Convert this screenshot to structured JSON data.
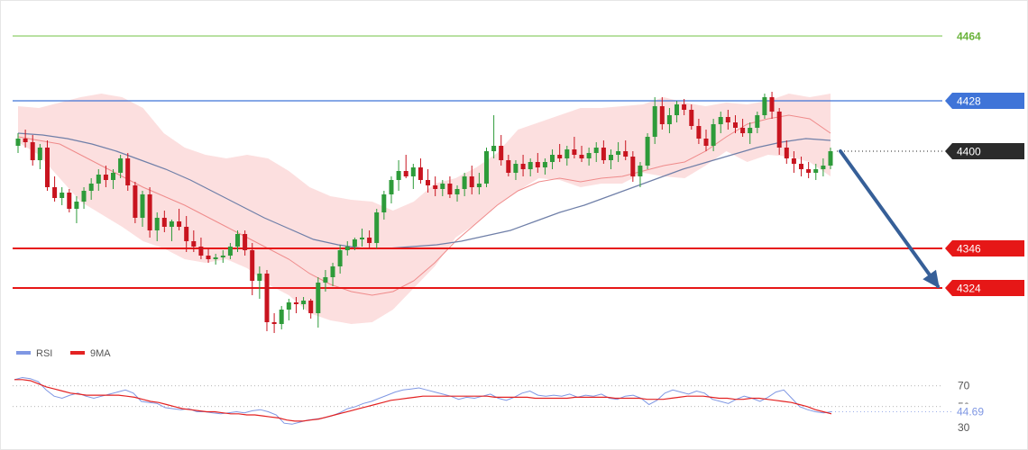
{
  "colors": {
    "background": "#ffffff",
    "up_candle": "#2e9b3a",
    "down_candle": "#c8141f",
    "bollinger_fill": "#fbd9d9",
    "bollinger_middle": "#ef8b8b",
    "moving_average": "#6f7fa8",
    "resistance_line": "#3f74d8",
    "support_line": "#e61717",
    "top_line": "#8fcf6a",
    "top_label": "#6ab33b",
    "current_price_tag": "#2b2b2b",
    "arrow": "#365f98",
    "rsi_line": "#7f97e3",
    "ma9_line": "#e32222",
    "axis_text": "#555555"
  },
  "price_chart": {
    "ylim": [
      4298,
      4478
    ],
    "candles_ohlc": [
      [
        4403,
        4410,
        4399,
        4407
      ],
      [
        4407,
        4412,
        4402,
        4405
      ],
      [
        4405,
        4409,
        4392,
        4395
      ],
      [
        4395,
        4404,
        4390,
        4402
      ],
      [
        4402,
        4406,
        4378,
        4380
      ],
      [
        4380,
        4386,
        4372,
        4374
      ],
      [
        4374,
        4380,
        4370,
        4377
      ],
      [
        4377,
        4379,
        4366,
        4368
      ],
      [
        4368,
        4375,
        4360,
        4372
      ],
      [
        4372,
        4380,
        4368,
        4378
      ],
      [
        4378,
        4385,
        4373,
        4382
      ],
      [
        4382,
        4390,
        4378,
        4387
      ],
      [
        4387,
        4392,
        4380,
        4384
      ],
      [
        4384,
        4390,
        4379,
        4388
      ],
      [
        4388,
        4398,
        4385,
        4396
      ],
      [
        4396,
        4399,
        4378,
        4381
      ],
      [
        4381,
        4383,
        4360,
        4363
      ],
      [
        4363,
        4378,
        4358,
        4376
      ],
      [
        4376,
        4380,
        4352,
        4356
      ],
      [
        4356,
        4366,
        4350,
        4363
      ],
      [
        4363,
        4367,
        4355,
        4358
      ],
      [
        4358,
        4362,
        4350,
        4361
      ],
      [
        4361,
        4368,
        4356,
        4358
      ],
      [
        4358,
        4364,
        4344,
        4350
      ],
      [
        4350,
        4356,
        4344,
        4347
      ],
      [
        4347,
        4352,
        4340,
        4342
      ],
      [
        4342,
        4346,
        4338,
        4340
      ],
      [
        4340,
        4343,
        4337,
        4341
      ],
      [
        4341,
        4345,
        4338,
        4342
      ],
      [
        4342,
        4349,
        4340,
        4347
      ],
      [
        4347,
        4356,
        4344,
        4354
      ],
      [
        4354,
        4356,
        4342,
        4345
      ],
      [
        4345,
        4349,
        4320,
        4328
      ],
      [
        4328,
        4336,
        4318,
        4332
      ],
      [
        4332,
        4334,
        4300,
        4305
      ],
      [
        4305,
        4310,
        4299,
        4304
      ],
      [
        4304,
        4314,
        4301,
        4312
      ],
      [
        4312,
        4318,
        4306,
        4316
      ],
      [
        4316,
        4319,
        4310,
        4315
      ],
      [
        4315,
        4319,
        4312,
        4317
      ],
      [
        4317,
        4318,
        4307,
        4310
      ],
      [
        4310,
        4330,
        4302,
        4327
      ],
      [
        4327,
        4334,
        4322,
        4330
      ],
      [
        4330,
        4338,
        4325,
        4336
      ],
      [
        4336,
        4348,
        4332,
        4345
      ],
      [
        4345,
        4350,
        4342,
        4347
      ],
      [
        4347,
        4352,
        4345,
        4351
      ],
      [
        4351,
        4357,
        4347,
        4352
      ],
      [
        4352,
        4356,
        4346,
        4349
      ],
      [
        4349,
        4368,
        4346,
        4366
      ],
      [
        4366,
        4378,
        4362,
        4376
      ],
      [
        4376,
        4386,
        4371,
        4384
      ],
      [
        4384,
        4395,
        4378,
        4389
      ],
      [
        4389,
        4398,
        4385,
        4386
      ],
      [
        4386,
        4393,
        4379,
        4391
      ],
      [
        4391,
        4396,
        4382,
        4384
      ],
      [
        4384,
        4390,
        4377,
        4381
      ],
      [
        4381,
        4386,
        4375,
        4379
      ],
      [
        4379,
        4384,
        4375,
        4382
      ],
      [
        4382,
        4386,
        4374,
        4376
      ],
      [
        4376,
        4381,
        4372,
        4379
      ],
      [
        4379,
        4388,
        4375,
        4386
      ],
      [
        4386,
        4392,
        4376,
        4380
      ],
      [
        4380,
        4388,
        4376,
        4382
      ],
      [
        4382,
        4402,
        4380,
        4400
      ],
      [
        4400,
        4420,
        4396,
        4403
      ],
      [
        4403,
        4409,
        4392,
        4395
      ],
      [
        4395,
        4398,
        4386,
        4388
      ],
      [
        4388,
        4395,
        4384,
        4393
      ],
      [
        4393,
        4398,
        4386,
        4390
      ],
      [
        4390,
        4396,
        4386,
        4394
      ],
      [
        4394,
        4399,
        4388,
        4391
      ],
      [
        4391,
        4396,
        4387,
        4394
      ],
      [
        4394,
        4401,
        4390,
        4398
      ],
      [
        4398,
        4404,
        4394,
        4396
      ],
      [
        4396,
        4403,
        4392,
        4401
      ],
      [
        4401,
        4408,
        4396,
        4398
      ],
      [
        4398,
        4403,
        4394,
        4396
      ],
      [
        4396,
        4402,
        4392,
        4399
      ],
      [
        4399,
        4405,
        4394,
        4402
      ],
      [
        4402,
        4406,
        4393,
        4395
      ],
      [
        4395,
        4401,
        4390,
        4398
      ],
      [
        4398,
        4405,
        4394,
        4400
      ],
      [
        4400,
        4406,
        4395,
        4397
      ],
      [
        4397,
        4400,
        4383,
        4386
      ],
      [
        4386,
        4394,
        4380,
        4392
      ],
      [
        4392,
        4410,
        4390,
        4408
      ],
      [
        4408,
        4430,
        4404,
        4425
      ],
      [
        4425,
        4430,
        4412,
        4415
      ],
      [
        4415,
        4424,
        4410,
        4420
      ],
      [
        4420,
        4428,
        4416,
        4426
      ],
      [
        4426,
        4429,
        4420,
        4423
      ],
      [
        4423,
        4426,
        4412,
        4414
      ],
      [
        4414,
        4418,
        4404,
        4407
      ],
      [
        4407,
        4412,
        4400,
        4403
      ],
      [
        4403,
        4418,
        4400,
        4415
      ],
      [
        4415,
        4422,
        4410,
        4419
      ],
      [
        4419,
        4423,
        4412,
        4416
      ],
      [
        4416,
        4420,
        4410,
        4413
      ],
      [
        4413,
        4418,
        4408,
        4410
      ],
      [
        4410,
        4416,
        4404,
        4413
      ],
      [
        4413,
        4422,
        4410,
        4420
      ],
      [
        4420,
        4432,
        4418,
        4430
      ],
      [
        4430,
        4433,
        4418,
        4422
      ],
      [
        4422,
        4424,
        4398,
        4402
      ],
      [
        4402,
        4406,
        4393,
        4396
      ],
      [
        4396,
        4400,
        4388,
        4393
      ],
      [
        4393,
        4397,
        4386,
        4390
      ],
      [
        4390,
        4394,
        4385,
        4388
      ],
      [
        4388,
        4393,
        4384,
        4390
      ],
      [
        4390,
        4396,
        4386,
        4392
      ],
      [
        4392,
        4402,
        4390,
        4400
      ]
    ],
    "bollinger_upper": [
      4425,
      4424,
      4427,
      4430,
      4432,
      4430,
      4424,
      4410,
      4402,
      4398,
      4396,
      4398,
      4396,
      4389,
      4380,
      4375,
      4373,
      4372,
      4367,
      4372,
      4382,
      4385,
      4391,
      4399,
      4412,
      4416,
      4420,
      4424,
      4424,
      4425,
      4426,
      4430,
      4427,
      4425,
      4427,
      4426,
      4428,
      4432,
      4430,
      4432
    ],
    "bollinger_lower": [
      4405,
      4398,
      4385,
      4372,
      4365,
      4358,
      4350,
      4346,
      4340,
      4338,
      4340,
      4335,
      4326,
      4320,
      4310,
      4306,
      4304,
      4305,
      4312,
      4324,
      4336,
      4352,
      4360,
      4370,
      4378,
      4385,
      4384,
      4380,
      4382,
      4382,
      4388,
      4386,
      4385,
      4392,
      4400,
      4394,
      4398,
      4397,
      4394,
      4386
    ],
    "bollinger_middle": [
      4408,
      4406,
      4404,
      4398,
      4392,
      4386,
      4380,
      4375,
      4370,
      4364,
      4358,
      4352,
      4346,
      4340,
      4332,
      4326,
      4322,
      4320,
      4322,
      4328,
      4338,
      4350,
      4360,
      4370,
      4378,
      4383,
      4385,
      4383,
      4385,
      4386,
      4389,
      4392,
      4394,
      4400,
      4408,
      4415,
      4418,
      4420,
      4418,
      4410
    ],
    "moving_average": [
      4410,
      4409,
      4407,
      4404,
      4400,
      4395,
      4390,
      4384,
      4377,
      4370,
      4363,
      4357,
      4351,
      4348,
      4346,
      4346,
      4347,
      4348,
      4350,
      4353,
      4356,
      4361,
      4366,
      4370,
      4375,
      4380,
      4385,
      4390,
      4394,
      4398,
      4402,
      4405,
      4407,
      4406
    ],
    "dotted_line_price": 4400
  },
  "levels": [
    {
      "label": "4464",
      "value": 4464,
      "kind": "top"
    },
    {
      "label": "4428",
      "value": 4428,
      "kind": "resistance"
    },
    {
      "label": "4400",
      "value": 4400,
      "kind": "current"
    },
    {
      "label": "4346",
      "value": 4346,
      "kind": "support"
    },
    {
      "label": "4324",
      "value": 4324,
      "kind": "support"
    }
  ],
  "forecast_arrow": {
    "from_value": 4400,
    "to_value": 4324
  },
  "legend": [
    {
      "name": "RSI",
      "color": "#7f97e3"
    },
    {
      "name": "9MA",
      "color": "#e32222"
    }
  ],
  "rsi_panel": {
    "ylim": [
      22,
      88
    ],
    "ticks": [
      {
        "label": "70",
        "value": 70,
        "gridline": true
      },
      {
        "label": "50",
        "value": 50,
        "gridline": true
      },
      {
        "label": "30",
        "value": 30,
        "gridline": false
      }
    ],
    "current_value_label": "44.69",
    "rsi_values": [
      76,
      78,
      77,
      74,
      66,
      60,
      58,
      61,
      63,
      60,
      58,
      60,
      62,
      64,
      66,
      63,
      55,
      54,
      53,
      49,
      48,
      47,
      48,
      45,
      45,
      44,
      43,
      44,
      45,
      44,
      46,
      47,
      45,
      42,
      34,
      33,
      35,
      37,
      38,
      39,
      41,
      44,
      48,
      50,
      53,
      55,
      58,
      61,
      64,
      66,
      67,
      68,
      66,
      64,
      62,
      60,
      57,
      59,
      58,
      60,
      62,
      58,
      56,
      59,
      63,
      65,
      61,
      60,
      61,
      60,
      62,
      59,
      61,
      60,
      62,
      58,
      57,
      60,
      61,
      58,
      52,
      56,
      63,
      66,
      64,
      62,
      65,
      63,
      57,
      55,
      53,
      57,
      60,
      58,
      55,
      59,
      64,
      66,
      58,
      50,
      47,
      45,
      44,
      45
    ],
    "ma9_values": [
      76,
      76,
      75,
      72,
      69,
      67,
      65,
      63,
      62,
      61,
      61,
      61,
      61,
      61,
      60,
      59,
      57,
      55,
      54,
      52,
      50,
      48,
      47,
      46,
      45,
      45,
      44,
      43,
      43,
      42,
      42,
      41,
      40,
      39,
      37,
      36,
      36,
      37,
      38,
      40,
      42,
      44,
      46,
      48,
      50,
      52,
      54,
      56,
      57,
      58,
      59,
      60,
      60,
      60,
      60,
      60,
      60,
      60,
      60,
      60,
      59,
      59,
      59,
      59,
      59,
      58,
      58,
      58,
      58,
      58,
      59,
      59,
      59,
      59,
      59,
      58,
      58,
      58,
      58,
      57,
      57,
      57,
      58,
      59,
      60,
      60,
      60,
      59,
      58,
      58,
      57,
      57,
      58,
      58,
      57,
      56,
      55,
      54,
      52,
      50,
      47,
      45,
      43
    ]
  }
}
